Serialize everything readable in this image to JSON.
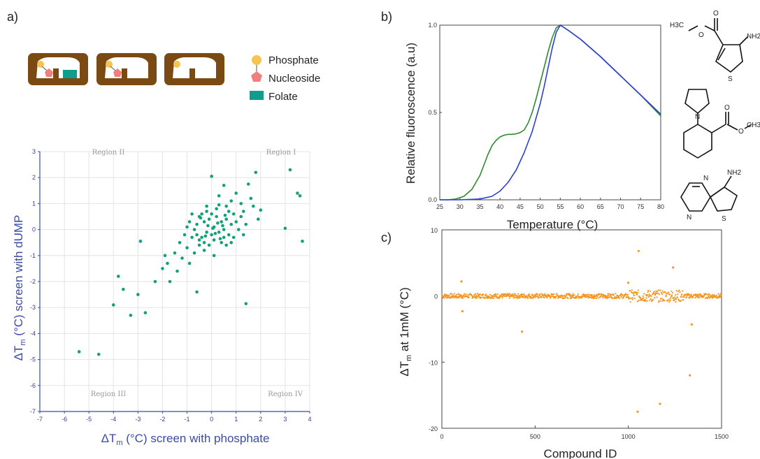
{
  "panels": {
    "a": "a)",
    "b": "b)",
    "c": "c)"
  },
  "legend_a": [
    {
      "name": "Phosphate",
      "color": "#f5c451",
      "shape": "circle"
    },
    {
      "name": "Nucleoside",
      "color": "#f08080",
      "shape": "pentagon"
    },
    {
      "name": "Folate",
      "color": "#0e9e8e",
      "shape": "rect"
    }
  ],
  "colors": {
    "pocket_brown": "#7a4a12",
    "scatter_green": "#12a07a",
    "curve_green": "#2e8b2e",
    "curve_blue": "#2b3fd0",
    "scatter_orange": "#f7941d",
    "axis_blue": "#3b4aa8"
  },
  "molecules": {
    "m1": {
      "labels": [
        "H3C",
        "O",
        "O",
        "S",
        "NH2"
      ]
    },
    "m2": {
      "labels": [
        "N",
        "O",
        "O",
        "CH3"
      ]
    },
    "m3": {
      "labels": [
        "N",
        "N",
        "S",
        "NH2"
      ]
    }
  },
  "chart_data": [
    {
      "id": "a",
      "type": "scatter",
      "xlabel_main": "ΔT",
      "xlabel_sub": "m",
      "xlabel_rest": " (°C) screen with phosphate",
      "ylabel_main": "ΔT",
      "ylabel_sub": "m",
      "ylabel_rest": " (°C) screen with dUMP",
      "xlim": [
        -7,
        4
      ],
      "ylim": [
        -7,
        3
      ],
      "xticks": [
        "-7",
        "-6",
        "-5",
        "-4",
        "-3",
        "-2",
        "-1",
        "0",
        "1",
        "2",
        "3",
        "4"
      ],
      "yticks": [
        "3",
        "2",
        "1",
        "0",
        "-1",
        "-2",
        "-3",
        "-4",
        "-5",
        "-6",
        "-7"
      ],
      "grid": true,
      "regions": [
        {
          "label": "Region I",
          "quadrant": "top-right"
        },
        {
          "label": "Region II",
          "quadrant": "top-left"
        },
        {
          "label": "Region III",
          "quadrant": "bottom-left"
        },
        {
          "label": "Region IV",
          "quadrant": "bottom-right"
        }
      ],
      "points": [
        [
          -5.4,
          -4.7
        ],
        [
          -4.6,
          -4.8
        ],
        [
          -4.0,
          -2.9
        ],
        [
          -3.8,
          -1.8
        ],
        [
          -3.6,
          -2.3
        ],
        [
          -3.3,
          -3.3
        ],
        [
          -3.0,
          -2.5
        ],
        [
          -2.9,
          -0.45
        ],
        [
          -2.7,
          -3.2
        ],
        [
          -2.3,
          -2.0
        ],
        [
          -2.0,
          -1.5
        ],
        [
          -1.9,
          -1.0
        ],
        [
          -1.8,
          -1.3
        ],
        [
          -1.7,
          -2.0
        ],
        [
          -1.5,
          -0.9
        ],
        [
          -1.4,
          -1.6
        ],
        [
          -1.3,
          -0.5
        ],
        [
          -1.2,
          -1.1
        ],
        [
          -1.1,
          -0.2
        ],
        [
          -1.0,
          -0.7
        ],
        [
          -0.9,
          -1.3
        ],
        [
          -0.8,
          -0.3
        ],
        [
          -0.7,
          -0.9
        ],
        [
          -0.6,
          -2.4
        ],
        [
          -0.5,
          -0.4
        ],
        [
          -0.4,
          0.6
        ],
        [
          -0.3,
          -0.8
        ],
        [
          -0.2,
          0.9
        ],
        [
          0.0,
          2.05
        ],
        [
          0.1,
          -1.0
        ],
        [
          0.3,
          1.3
        ],
        [
          0.5,
          1.7
        ],
        [
          0.6,
          -0.6
        ],
        [
          0.8,
          1.1
        ],
        [
          0.9,
          0.6
        ],
        [
          1.0,
          1.4
        ],
        [
          1.2,
          1.0
        ],
        [
          1.3,
          0.7
        ],
        [
          1.4,
          -2.85
        ],
        [
          1.5,
          1.75
        ],
        [
          1.6,
          1.2
        ],
        [
          1.7,
          0.9
        ],
        [
          1.8,
          2.2
        ],
        [
          1.9,
          0.4
        ],
        [
          2.0,
          0.75
        ],
        [
          3.0,
          0.05
        ],
        [
          3.2,
          2.3
        ],
        [
          3.5,
          1.4
        ],
        [
          3.6,
          1.3
        ],
        [
          3.7,
          -0.45
        ],
        [
          -0.6,
          0.2
        ],
        [
          -0.5,
          0.5
        ],
        [
          -0.4,
          -0.3
        ],
        [
          -0.3,
          0.3
        ],
        [
          -0.2,
          -0.1
        ],
        [
          -0.1,
          0.4
        ],
        [
          0.0,
          -0.2
        ],
        [
          0.1,
          0.1
        ],
        [
          0.2,
          0.5
        ],
        [
          0.3,
          -0.1
        ],
        [
          0.4,
          0.3
        ],
        [
          0.5,
          0.0
        ],
        [
          0.6,
          0.4
        ],
        [
          0.7,
          -0.2
        ],
        [
          0.8,
          0.2
        ],
        [
          0.9,
          -0.3
        ],
        [
          1.0,
          0.3
        ],
        [
          1.1,
          0.0
        ],
        [
          -0.8,
          0.6
        ],
        [
          -0.7,
          0.0
        ],
        [
          -0.2,
          0.7
        ],
        [
          0.2,
          0.8
        ],
        [
          0.4,
          -0.5
        ],
        [
          0.6,
          0.9
        ],
        [
          -0.3,
          -0.5
        ],
        [
          0.1,
          -0.4
        ],
        [
          0.5,
          -0.3
        ],
        [
          1.2,
          0.5
        ],
        [
          -0.9,
          0.3
        ],
        [
          -1.0,
          0.1
        ],
        [
          1.4,
          0.2
        ],
        [
          1.3,
          -0.2
        ],
        [
          0.7,
          0.7
        ],
        [
          -0.5,
          -0.6
        ],
        [
          0.0,
          0.6
        ],
        [
          0.3,
          0.95
        ],
        [
          -0.1,
          -0.6
        ],
        [
          0.8,
          -0.5
        ],
        [
          -0.6,
          -0.2
        ],
        [
          0.45,
          0.15
        ],
        [
          0.15,
          -0.15
        ],
        [
          -0.15,
          0.15
        ],
        [
          0.25,
          0.25
        ],
        [
          -0.25,
          -0.25
        ],
        [
          0.35,
          -0.35
        ],
        [
          0.05,
          0.05
        ],
        [
          0.55,
          0.55
        ],
        [
          -0.45,
          0.45
        ]
      ]
    },
    {
      "id": "b",
      "type": "line",
      "xlabel": "Temperature (°C)",
      "ylabel": "Relative fluoroscence (a.u)",
      "xlim": [
        25,
        80
      ],
      "ylim": [
        0,
        1
      ],
      "xticks": [
        "25",
        "30",
        "35",
        "40",
        "45",
        "50",
        "55",
        "60",
        "65",
        "70",
        "75",
        "80"
      ],
      "yticks": [
        "0.0",
        "0.5",
        "1.0"
      ],
      "series": [
        {
          "color": "#2e8b2e",
          "x": [
            25,
            27,
            29,
            31,
            33,
            35,
            36,
            37,
            38,
            39,
            40,
            41,
            42,
            43,
            44,
            45,
            46,
            47,
            48,
            49,
            50,
            51,
            52,
            53,
            54,
            55,
            57,
            60,
            65,
            70,
            75,
            80
          ],
          "y": [
            0.0,
            0.0,
            0.005,
            0.02,
            0.06,
            0.14,
            0.2,
            0.26,
            0.31,
            0.34,
            0.36,
            0.37,
            0.375,
            0.375,
            0.378,
            0.385,
            0.4,
            0.44,
            0.5,
            0.58,
            0.67,
            0.76,
            0.85,
            0.93,
            0.985,
            1.0,
            0.97,
            0.92,
            0.82,
            0.71,
            0.6,
            0.48
          ]
        },
        {
          "color": "#2b3fd0",
          "x": [
            25,
            30,
            35,
            38,
            40,
            42,
            44,
            46,
            48,
            50,
            51,
            52,
            53,
            54,
            55,
            57,
            60,
            65,
            70,
            75,
            80
          ],
          "y": [
            0.0,
            0.0,
            0.005,
            0.02,
            0.05,
            0.1,
            0.17,
            0.27,
            0.39,
            0.55,
            0.65,
            0.76,
            0.87,
            0.96,
            1.0,
            0.97,
            0.92,
            0.82,
            0.71,
            0.6,
            0.49
          ]
        }
      ]
    },
    {
      "id": "c",
      "type": "scatter",
      "xlabel": "Compound ID",
      "ylabel_main": "ΔT",
      "ylabel_sub": "m",
      "ylabel_rest": " at 1mM (°C)",
      "xlim": [
        0,
        1500
      ],
      "ylim": [
        -20,
        10
      ],
      "xticks": [
        "0",
        "500",
        "1000",
        "1500"
      ],
      "yticks": [
        "10",
        "0",
        "-10",
        "-20"
      ],
      "outliers": [
        [
          105,
          2.2
        ],
        [
          110,
          -2.3
        ],
        [
          430,
          -5.4
        ],
        [
          1000,
          2.0
        ],
        [
          1050,
          -17.5
        ],
        [
          1055,
          6.8
        ],
        [
          1170,
          -16.3
        ],
        [
          1240,
          4.3
        ],
        [
          1330,
          -12.0
        ],
        [
          1340,
          -4.3
        ]
      ]
    }
  ]
}
